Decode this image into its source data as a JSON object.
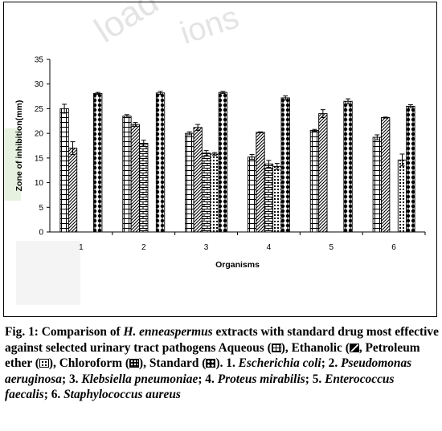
{
  "chart_data": {
    "type": "bar",
    "xlabel": "Organisms",
    "ylabel": "Zone of inhibition(mm)",
    "ylim": [
      0,
      35
    ],
    "yticks": [
      0,
      5,
      10,
      15,
      20,
      25,
      30,
      35
    ],
    "categories": [
      "1",
      "2",
      "3",
      "4",
      "5",
      "6"
    ],
    "grid": false,
    "error_bars": true,
    "series": [
      {
        "name": "Aqueous",
        "pattern": "grid",
        "values": [
          25.0,
          23.5,
          20.0,
          15.2,
          20.6,
          19.2
        ],
        "errors": [
          0.9,
          0.3,
          0.3,
          0.5,
          0.2,
          0.5
        ]
      },
      {
        "name": "Ethanolic",
        "pattern": "diagonal",
        "values": [
          17.0,
          21.8,
          21.2,
          20.2,
          24.0,
          23.2
        ],
        "errors": [
          1.3,
          0.4,
          0.6,
          0.1,
          0.8,
          0.1
        ]
      },
      {
        "name": "Petroleum ether",
        "pattern": "brick",
        "values": [
          null,
          18.0,
          16.0,
          13.8,
          null,
          null
        ],
        "errors": [
          null,
          0.6,
          0.5,
          0.7,
          null,
          null
        ]
      },
      {
        "name": "Chloroform",
        "pattern": "dots",
        "values": [
          null,
          null,
          15.8,
          13.3,
          null,
          14.6
        ],
        "errors": [
          null,
          null,
          0.3,
          0.6,
          null,
          1.2
        ]
      },
      {
        "name": "Standard",
        "pattern": "checker",
        "values": [
          28.1,
          28.2,
          28.3,
          27.2,
          26.5,
          25.5
        ],
        "errors": [
          0.2,
          0.3,
          0.2,
          0.4,
          0.5,
          0.3
        ]
      }
    ]
  },
  "watermark": {
    "texts": [
      "load",
      "ions"
    ],
    "color": "#e6e6e6"
  },
  "caption": {
    "fig_label": "Fig. 1:",
    "text_1": " Comparison of ",
    "species": "H. enneaspermus",
    "text_2": " extracts with standard drug most effective against selected urinary tract pathogens Aqueous (",
    "text_3": "), Ethanolic (",
    "text_4": ", Petroleum ether (",
    "text_5": "), Chloroform (",
    "text_6": "), Standard (",
    "text_7": "). 1. ",
    "org1": "Escherichia coli",
    "sep1": "; 2. ",
    "org2": "Pseudomonas aeruginosa",
    "sep2": "; 3. ",
    "org3": "Klebsiella pneumoniae",
    "sep3": "; 4. ",
    "org4": "Proteus mirabilis",
    "sep4": "; 5. ",
    "org5": "Enterococcus faecalis",
    "sep5": "; 6. ",
    "org6": "Staphylococcus aureus"
  }
}
